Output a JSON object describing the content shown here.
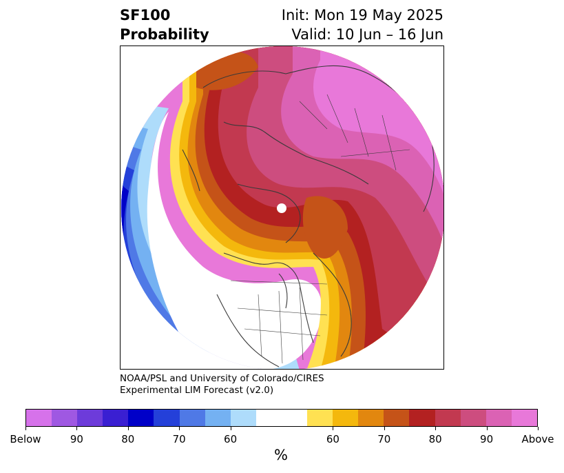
{
  "title": {
    "line1": "SF100",
    "line2": "Probability",
    "init": "Init: Mon 19 May 2025",
    "valid": "Valid: 10 Jun – 16 Jun"
  },
  "credit": {
    "line1": "NOAA/PSL and University of Colorado/CIRES",
    "line2": "Experimental LIM Forecast (v2.0)"
  },
  "colorbar": {
    "colors": [
      "#d672ea",
      "#9f58e2",
      "#6d3bda",
      "#3a1fd2",
      "#0000c8",
      "#2440d9",
      "#4f79e6",
      "#74b1f2",
      "#aedcfb",
      "#ffffff",
      "#ffffff",
      "#ffe152",
      "#f4b80d",
      "#e2870f",
      "#c55318",
      "#b32121",
      "#c23950",
      "#cd4d7f",
      "#db62b4",
      "#e878d9"
    ],
    "tick_labels": [
      "Below",
      "90",
      "80",
      "70",
      "60",
      "60",
      "70",
      "80",
      "90",
      "Above"
    ],
    "unit": "%"
  },
  "map": {
    "projection": "north-polar-stereographic",
    "warm_colors": [
      "#ffe152",
      "#f4b80d",
      "#e2870f",
      "#c55318",
      "#b32121",
      "#c23950",
      "#cd4d7f",
      "#db62b4",
      "#e878d9"
    ],
    "cool_colors": [
      "#aedcfb",
      "#74b1f2",
      "#4f79e6",
      "#2440d9",
      "#0000c8"
    ]
  }
}
